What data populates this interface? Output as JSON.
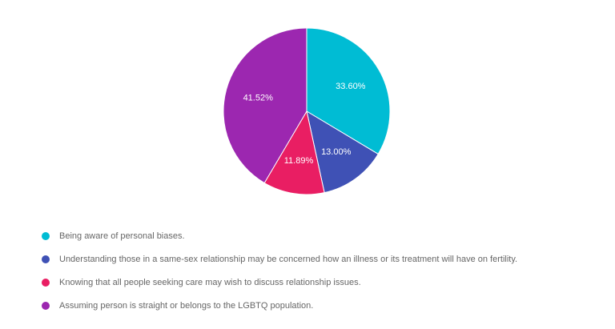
{
  "chart_data": {
    "type": "pie",
    "slices": [
      {
        "label": "Being aware of personal biases.",
        "value": 33.6,
        "display": "33.60%",
        "color": "#00bcd4"
      },
      {
        "label": "Understanding those in a same-sex relationship may be concerned how an illness or its treatment will have on fertility.",
        "value": 13.0,
        "display": "13.00%",
        "color": "#3f51b5"
      },
      {
        "label": "Knowing that all people seeking care may wish to discuss relationship issues.",
        "value": 11.89,
        "display": "11.89%",
        "color": "#e91e63"
      },
      {
        "label": "Assuming person is straight or belongs to the LGBTQ population.",
        "value": 41.52,
        "display": "41.52%",
        "color": "#9c27b0"
      }
    ],
    "start_angle": "12 o'clock",
    "direction": "clockwise",
    "legend_position": "bottom-left"
  }
}
